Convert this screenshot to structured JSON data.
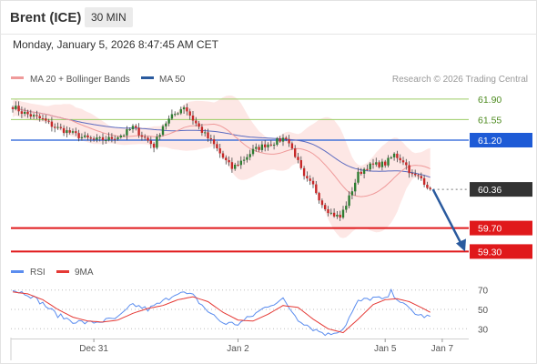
{
  "header": {
    "instrument": "Brent (ICE)",
    "timeframe": "30 MIN",
    "timestamp": "Monday, January 5, 2026 8:47:45 AM CET"
  },
  "legend": {
    "bollinger_label": "MA 20 + Bollinger Bands",
    "ma50_label": "MA 50",
    "copyright": "Research © 2026 Trading Central",
    "rsi_label": "RSI",
    "rsi_ma_label": "9MA"
  },
  "colors": {
    "bullish": "#2e7d32",
    "bearish": "#c62828",
    "bollinger_fill": "#fde3e1",
    "ma20": "#ef9a9a",
    "ma50": "#5c6bc0",
    "resistance": "#9ccc65",
    "pivot": "#1e5bd6",
    "support": "#e0191b",
    "last_price": "#333333",
    "rsi": "#5b8def",
    "rsi_ma": "#e53935",
    "forecast_arrow": "#2a5a9e"
  },
  "chart_data": [
    {
      "type": "candlestick",
      "panel": "price",
      "y_range": [
        59.12,
        62.1
      ],
      "levels": [
        {
          "value": 61.9,
          "label": "61.90",
          "kind": "resistance"
        },
        {
          "value": 61.55,
          "label": "61.55",
          "kind": "resistance"
        },
        {
          "value": 61.2,
          "label": "61.20",
          "kind": "pivot"
        },
        {
          "value": 60.36,
          "label": "60.36",
          "kind": "last"
        },
        {
          "value": 59.7,
          "label": "59.70",
          "kind": "support"
        },
        {
          "value": 59.3,
          "label": "59.30",
          "kind": "support"
        }
      ],
      "x_ticks": [
        {
          "label": "Dec 31",
          "bar": 27
        },
        {
          "label": "Jan 2",
          "bar": 75
        },
        {
          "label": "Jan 5",
          "bar": 124
        },
        {
          "label": "Jan 7",
          "bar": 143
        }
      ],
      "forecast": {
        "from": 60.36,
        "to": 59.3
      },
      "anchors": [
        [
          0,
          61.78
        ],
        [
          3,
          61.68
        ],
        [
          6,
          61.62
        ],
        [
          10,
          61.55
        ],
        [
          14,
          61.42
        ],
        [
          18,
          61.35
        ],
        [
          23,
          61.25
        ],
        [
          27,
          61.2
        ],
        [
          32,
          61.22
        ],
        [
          37,
          61.3
        ],
        [
          40,
          61.42
        ],
        [
          43,
          61.28
        ],
        [
          47,
          61.1
        ],
        [
          50,
          61.45
        ],
        [
          53,
          61.6
        ],
        [
          57,
          61.78
        ],
        [
          60,
          61.55
        ],
        [
          63,
          61.35
        ],
        [
          67,
          61.12
        ],
        [
          70,
          60.9
        ],
        [
          73,
          60.72
        ],
        [
          77,
          60.88
        ],
        [
          80,
          61.02
        ],
        [
          84,
          61.12
        ],
        [
          88,
          61.18
        ],
        [
          91,
          61.25
        ],
        [
          94,
          60.95
        ],
        [
          97,
          60.55
        ],
        [
          100,
          60.42
        ],
        [
          103,
          60.12
        ],
        [
          106,
          59.95
        ],
        [
          109,
          59.88
        ],
        [
          112,
          60.22
        ],
        [
          115,
          60.62
        ],
        [
          118,
          60.75
        ],
        [
          121,
          60.78
        ],
        [
          124,
          60.8
        ],
        [
          127,
          60.95
        ],
        [
          130,
          60.85
        ],
        [
          133,
          60.6
        ],
        [
          136,
          60.55
        ],
        [
          139,
          60.36
        ]
      ]
    },
    {
      "type": "line",
      "panel": "rsi",
      "y_range": [
        20,
        80
      ],
      "y_ticks": [
        70,
        50,
        30
      ],
      "series": [
        {
          "name": "RSI",
          "anchors": [
            [
              0,
              70
            ],
            [
              5,
              66
            ],
            [
              10,
              56
            ],
            [
              15,
              44
            ],
            [
              20,
              38
            ],
            [
              25,
              36
            ],
            [
              30,
              38
            ],
            [
              35,
              41
            ],
            [
              40,
              55
            ],
            [
              45,
              50
            ],
            [
              50,
              58
            ],
            [
              55,
              68
            ],
            [
              60,
              64
            ],
            [
              65,
              48
            ],
            [
              70,
              36
            ],
            [
              75,
              35
            ],
            [
              80,
              44
            ],
            [
              85,
              54
            ],
            [
              90,
              60
            ],
            [
              95,
              40
            ],
            [
              100,
              30
            ],
            [
              105,
              24
            ],
            [
              110,
              30
            ],
            [
              115,
              58
            ],
            [
              120,
              62
            ],
            [
              124,
              60
            ],
            [
              126,
              68
            ],
            [
              130,
              55
            ],
            [
              135,
              44
            ],
            [
              139,
              42
            ]
          ]
        },
        {
          "name": "9MA",
          "anchors": [
            [
              0,
              68
            ],
            [
              5,
              66
            ],
            [
              10,
              60
            ],
            [
              15,
              50
            ],
            [
              20,
              42
            ],
            [
              25,
              38
            ],
            [
              30,
              37
            ],
            [
              35,
              39
            ],
            [
              40,
              46
            ],
            [
              45,
              51
            ],
            [
              50,
              54
            ],
            [
              55,
              60
            ],
            [
              60,
              63
            ],
            [
              65,
              58
            ],
            [
              70,
              47
            ],
            [
              75,
              39
            ],
            [
              80,
              38
            ],
            [
              85,
              45
            ],
            [
              90,
              54
            ],
            [
              95,
              52
            ],
            [
              100,
              40
            ],
            [
              105,
              30
            ],
            [
              110,
              26
            ],
            [
              115,
              40
            ],
            [
              120,
              55
            ],
            [
              124,
              60
            ],
            [
              128,
              61
            ],
            [
              132,
              58
            ],
            [
              136,
              52
            ],
            [
              139,
              47
            ]
          ]
        }
      ]
    }
  ]
}
